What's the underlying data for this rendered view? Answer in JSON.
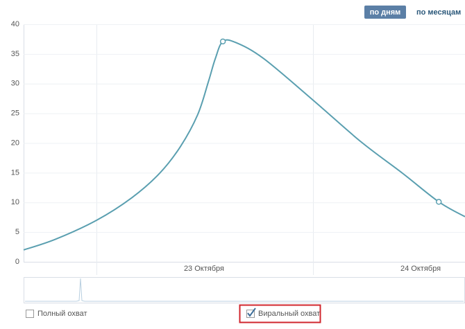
{
  "toolbar": {
    "by_days": "по дням",
    "by_months": "по месяцам"
  },
  "chart_data": {
    "type": "line",
    "x": [
      0,
      0.147,
      0.337,
      0.5,
      0.628,
      0.724,
      0.804,
      0.853,
      0.885,
      0.92,
      0.981,
      1.109,
      1.337,
      1.558,
      1.75,
      1.917,
      2.038
    ],
    "series": [
      {
        "color": "#5a9fb0",
        "values": [
          2.0,
          3.8,
          7.0,
          10.8,
          14.9,
          19.4,
          24.8,
          30.3,
          34.2,
          37.1,
          36.9,
          34.2,
          27.2,
          20.2,
          14.9,
          10.1,
          7.6
        ]
      }
    ],
    "xlim": [
      0,
      2.038
    ],
    "xticks": [
      {
        "value": 0.833,
        "label": "23 Октября"
      },
      {
        "value": 1.833,
        "label": "24 Октября"
      }
    ],
    "ylim": [
      0,
      40
    ],
    "yticks": [
      0,
      5,
      10,
      15,
      20,
      25,
      30,
      35,
      40
    ],
    "grid": true,
    "legend_items": [
      {
        "label": "Полный охват",
        "checked": false
      },
      {
        "label": "Виральный охват",
        "checked": true
      }
    ]
  }
}
